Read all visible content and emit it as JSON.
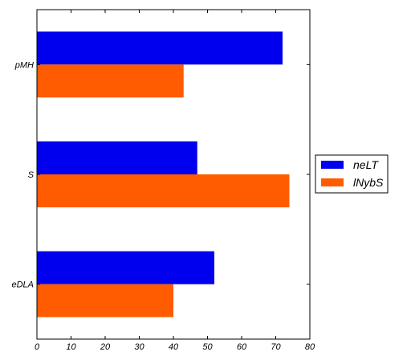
{
  "chart_data": {
    "type": "bar",
    "orientation": "horizontal",
    "categories": [
      "pMH",
      "S",
      "eDLA"
    ],
    "series": [
      {
        "name": "neLT",
        "values": [
          72,
          47,
          52
        ],
        "color": "#0000ee"
      },
      {
        "name": "lNybS",
        "values": [
          43,
          74,
          40
        ],
        "color": "#ff5b00"
      }
    ],
    "xlim": [
      0,
      80
    ],
    "xticks": [
      "0",
      "10",
      "20",
      "30",
      "40",
      "50",
      "60",
      "70",
      "80"
    ],
    "title": "",
    "xlabel": "",
    "ylabel": "",
    "grid": false,
    "legend_position": "right"
  }
}
